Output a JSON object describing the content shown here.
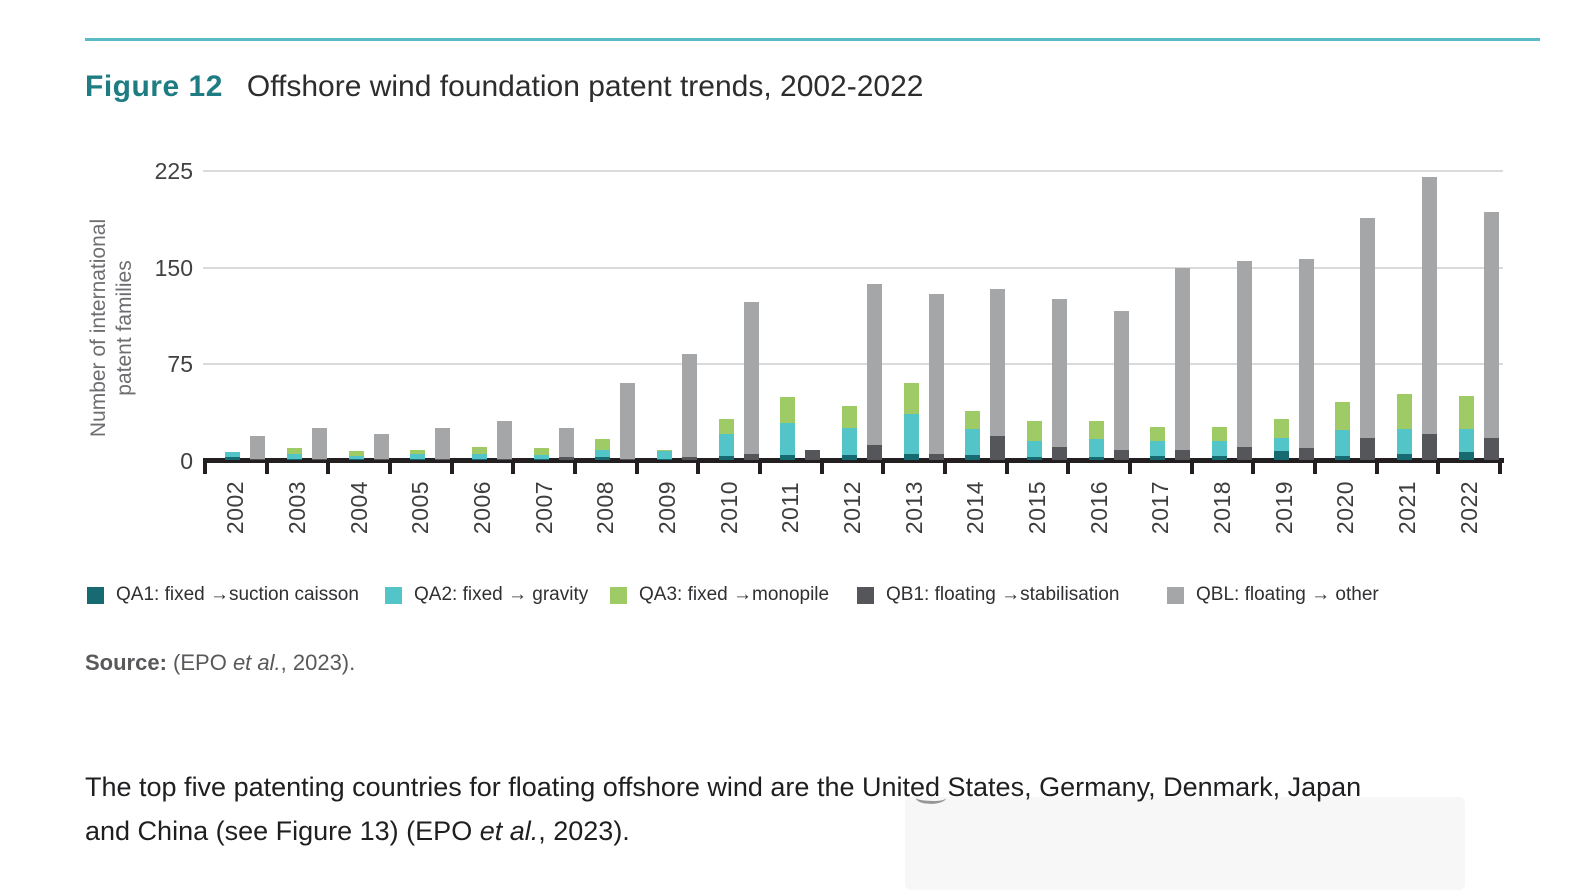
{
  "page": {
    "figure_label": "Figure 12",
    "figure_title": "Offshore wind foundation patent trends, 2002-2022",
    "source": {
      "label": "Source:",
      "before_italic": " (EPO ",
      "italic": "et al.",
      "after_italic": ", 2023)."
    },
    "paragraph": {
      "line1": "The top five patenting countries for floating offshore wind are the United States, Germany, Denmark, Japan",
      "line2_before_italic": "and China (see Figure 13) (EPO ",
      "italic": "et al.",
      "line2_after_italic": ", 2023)."
    }
  },
  "colors": {
    "header_rule": "#5ABAC5",
    "figure_label": "#1E7C83",
    "axis": "#231F20",
    "gridline": "#DADADB",
    "tick_text": "#414042",
    "axis_title_text": "#6D6E71"
  },
  "chart_data": {
    "type": "bar",
    "title": "Offshore wind foundation patent trends, 2002-2022",
    "ylabel": "Number of international patent families",
    "ylabel_lines": [
      "Number of international",
      "patent families"
    ],
    "yticks": [
      0,
      75,
      150,
      225
    ],
    "ylim": [
      0,
      235
    ],
    "grid": "horizontal",
    "legend_position": "bottom",
    "bar_groups": [
      [
        "QA1",
        "QA2",
        "QA3"
      ],
      [
        "QB1",
        "QBL"
      ]
    ],
    "categories": [
      "2002",
      "2003",
      "2004",
      "2005",
      "2006",
      "2007",
      "2008",
      "2009",
      "2010",
      "2011",
      "2012",
      "2013",
      "2014",
      "2015",
      "2016",
      "2017",
      "2018",
      "2019",
      "2020",
      "2021",
      "2022"
    ],
    "series": [
      {
        "key": "QA1",
        "name": "QA1: fixed →suction caisson",
        "color": "#166A70",
        "values": [
          2,
          1,
          1,
          1,
          1,
          1,
          2,
          1,
          3,
          4,
          4,
          5,
          4,
          2,
          2,
          3,
          3,
          7,
          3,
          5,
          6
        ]
      },
      {
        "key": "QA2",
        "name": "QA2: fixed → gravity",
        "color": "#53C4C8",
        "values": [
          4,
          4,
          2,
          4,
          4,
          3,
          6,
          6,
          17,
          25,
          21,
          31,
          20,
          13,
          14,
          12,
          12,
          10,
          20,
          19,
          18
        ]
      },
      {
        "key": "QA3",
        "name": "QA3: fixed →monopile",
        "color": "#9FCB66",
        "values": [
          0,
          4,
          4,
          3,
          5,
          5,
          8,
          1,
          12,
          20,
          17,
          24,
          14,
          15,
          14,
          11,
          11,
          15,
          22,
          27,
          26
        ]
      },
      {
        "key": "QB1",
        "name": "QB1: floating →stabilisation",
        "color": "#55565A",
        "values": [
          1,
          1,
          1,
          1,
          1,
          2,
          1,
          2,
          5,
          8,
          12,
          5,
          19,
          10,
          8,
          8,
          10,
          9,
          17,
          20,
          17
        ]
      },
      {
        "key": "QBL",
        "name": "QBL: floating → other",
        "color": "#A5A6A8",
        "values": [
          18,
          24,
          19,
          24,
          29,
          23,
          59,
          80,
          118,
          0,
          125,
          124,
          114,
          115,
          108,
          141,
          145,
          147,
          171,
          200,
          176
        ]
      }
    ]
  }
}
